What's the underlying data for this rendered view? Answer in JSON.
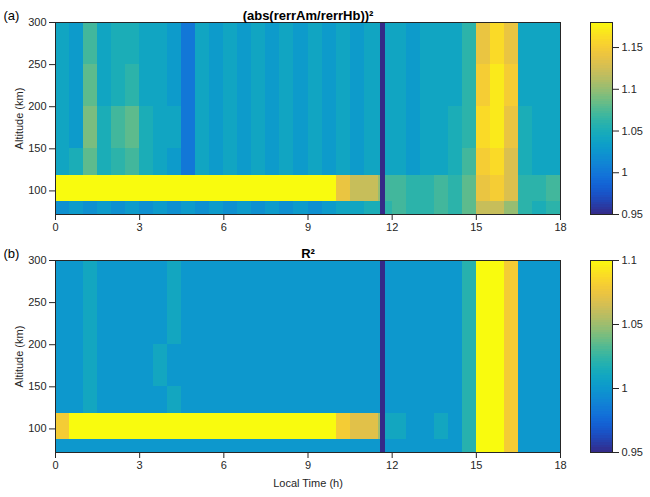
{
  "chart_data": [
    {
      "type": "heatmap",
      "label": "(a)",
      "title": "(abs(rerrAm/rerrHb))²",
      "y_label": "Altitude (km)",
      "xlim": [
        0,
        18
      ],
      "xticks": [
        0,
        3,
        6,
        9,
        12,
        15,
        18
      ],
      "ylim": [
        72,
        300
      ],
      "yticks": [
        100,
        150,
        200,
        250,
        300
      ],
      "x_edges": [
        0,
        0.5,
        1,
        1.5,
        2,
        2.5,
        3,
        3.5,
        4,
        4.5,
        5,
        5.5,
        6,
        6.5,
        7,
        7.5,
        8,
        8.5,
        9,
        9.5,
        10,
        10.5,
        11,
        11.5,
        11.6,
        11.75,
        12,
        12.5,
        13,
        13.5,
        14,
        14.5,
        15,
        15.5,
        16,
        16.5,
        17,
        17.5,
        18
      ],
      "y_edges": [
        72,
        88,
        118,
        150,
        200,
        250,
        300
      ],
      "cells": [
        [
          1.02,
          1.03,
          1.02,
          1.03,
          1.02,
          1.03,
          1.02,
          1.03,
          1.02,
          1.03,
          1.02,
          1.03,
          1.02,
          1.03,
          1.02,
          1.03,
          1.02,
          1.03,
          1.02,
          1.03,
          1.04,
          1.04,
          1.05,
          1.05,
          0.95,
          1.06,
          1.07,
          1.06,
          1.06,
          1.07,
          1.06,
          1.08,
          1.12,
          1.12,
          1.1,
          1.06,
          1.05,
          1.06
        ],
        [
          1.18,
          1.18,
          1.18,
          1.18,
          1.18,
          1.18,
          1.18,
          1.18,
          1.18,
          1.18,
          1.18,
          1.18,
          1.18,
          1.18,
          1.18,
          1.18,
          1.18,
          1.18,
          1.18,
          1.18,
          1.14,
          1.12,
          1.12,
          1.1,
          0.95,
          1.07,
          1.07,
          1.06,
          1.06,
          1.07,
          1.06,
          1.08,
          1.14,
          1.15,
          1.13,
          1.06,
          1.06,
          1.07
        ],
        [
          1.04,
          1.05,
          1.08,
          1.05,
          1.06,
          1.07,
          1.05,
          1.04,
          1.03,
          1,
          1.04,
          1.03,
          1.04,
          1.03,
          1.04,
          1.03,
          1.04,
          1.03,
          1.04,
          1.03,
          1.04,
          1.03,
          1.04,
          1.04,
          0.95,
          1.04,
          1.04,
          1.03,
          1.04,
          1.04,
          1.05,
          1.07,
          1.15,
          1.16,
          1.13,
          1.05,
          1.04,
          1.04
        ],
        [
          1.04,
          1.03,
          1.09,
          1.05,
          1.07,
          1.08,
          1.05,
          1.04,
          1.04,
          1,
          1.04,
          1.03,
          1.04,
          1.03,
          1.04,
          1.03,
          1.04,
          1.03,
          1.04,
          1.03,
          1.04,
          1.03,
          1.04,
          1.04,
          0.95,
          1.04,
          1.04,
          1.03,
          1.04,
          1.04,
          1.05,
          1.06,
          1.16,
          1.17,
          1.14,
          1.05,
          1.04,
          1.04
        ],
        [
          1.04,
          1.03,
          1.08,
          1.04,
          1.05,
          1.06,
          1.04,
          1.04,
          1.03,
          1,
          1.04,
          1.03,
          1.04,
          1.03,
          1.04,
          1.03,
          1.04,
          1.03,
          1.04,
          1.03,
          1.04,
          1.03,
          1.04,
          1.04,
          0.95,
          1.04,
          1.04,
          1.03,
          1.04,
          1.04,
          1.04,
          1.06,
          1.15,
          1.17,
          1.15,
          1.04,
          1.04,
          1.04
        ],
        [
          1.04,
          1.03,
          1.07,
          1.04,
          1.05,
          1.05,
          1.04,
          1.04,
          1.03,
          1,
          1.04,
          1.03,
          1.04,
          1.03,
          1.04,
          1.03,
          1.04,
          1.03,
          1.04,
          1.03,
          1.04,
          1.03,
          1.04,
          1.04,
          0.95,
          1.04,
          1.04,
          1.03,
          1.04,
          1.04,
          1.04,
          1.06,
          1.14,
          1.16,
          1.14,
          1.04,
          1.04,
          1.04
        ]
      ],
      "colorbar": {
        "range": [
          0.95,
          1.18
        ],
        "ticks": [
          0.95,
          1,
          1.05,
          1.1,
          1.15
        ]
      }
    },
    {
      "type": "heatmap",
      "label": "(b)",
      "title": "R²",
      "x_label": "Local Time (h)",
      "y_label": "Altitude (km)",
      "xlim": [
        0,
        18
      ],
      "xticks": [
        0,
        3,
        6,
        9,
        12,
        15,
        18
      ],
      "ylim": [
        72,
        300
      ],
      "yticks": [
        100,
        150,
        200,
        250,
        300
      ],
      "x_edges": [
        0,
        0.5,
        1,
        1.5,
        2,
        2.5,
        3,
        3.5,
        4,
        4.5,
        5,
        5.5,
        6,
        6.5,
        7,
        7.5,
        8,
        8.5,
        9,
        9.5,
        10,
        10.5,
        11,
        11.5,
        11.6,
        11.75,
        12,
        12.5,
        13,
        13.5,
        14,
        14.5,
        15,
        15.5,
        16,
        16.5,
        17,
        17.5,
        18
      ],
      "y_edges": [
        72,
        88,
        118,
        150,
        200,
        250,
        300
      ],
      "cells": [
        [
          1,
          1,
          1,
          1,
          1,
          1,
          1,
          1,
          1,
          1,
          1,
          1,
          1,
          1,
          1,
          1,
          1,
          1,
          1,
          1,
          1,
          1,
          1,
          1,
          0.95,
          1,
          1,
          1,
          1,
          1,
          1,
          1.02,
          1.1,
          1.1,
          1.08,
          1,
          1,
          1
        ],
        [
          1.08,
          1.1,
          1.1,
          1.1,
          1.1,
          1.1,
          1.1,
          1.1,
          1.1,
          1.1,
          1.1,
          1.1,
          1.1,
          1.1,
          1.1,
          1.1,
          1.1,
          1.1,
          1.1,
          1.1,
          1.08,
          1.07,
          1.07,
          1.05,
          0.95,
          1.01,
          1.01,
          1,
          1,
          1.01,
          1,
          1.02,
          1.1,
          1.1,
          1.08,
          1,
          1,
          1
        ],
        [
          1,
          1,
          1.01,
          1,
          1,
          1,
          1,
          1,
          1.01,
          1,
          1,
          1,
          1,
          1,
          1,
          1,
          1,
          1,
          1,
          1,
          1,
          1,
          1,
          1,
          0.95,
          1,
          1,
          1,
          1,
          1,
          1,
          1.02,
          1.1,
          1.1,
          1.08,
          1,
          1,
          1
        ],
        [
          1,
          1,
          1.01,
          1,
          1,
          1,
          1,
          1.01,
          1,
          1,
          1,
          1,
          1,
          1,
          1,
          1,
          1,
          1,
          1,
          1,
          1,
          1,
          1,
          1,
          0.95,
          1,
          1,
          1,
          1,
          1,
          1,
          1.02,
          1.1,
          1.1,
          1.08,
          1,
          1,
          1
        ],
        [
          1,
          1,
          1.01,
          1,
          1,
          1,
          1,
          1,
          1.01,
          1,
          1,
          1,
          1,
          1,
          1,
          1,
          1,
          1,
          1,
          1,
          1,
          1,
          1,
          1,
          0.95,
          1,
          1,
          1,
          1,
          1,
          1,
          1.02,
          1.1,
          1.1,
          1.08,
          1,
          1,
          1
        ],
        [
          1,
          1,
          1.01,
          1,
          1,
          1,
          1,
          1,
          1.01,
          1,
          1,
          1,
          1,
          1,
          1,
          1,
          1,
          1,
          1,
          1,
          1,
          1,
          1,
          1,
          0.95,
          1,
          1,
          1,
          1,
          1,
          1,
          1.02,
          1.1,
          1.1,
          1.08,
          1,
          1,
          1
        ]
      ],
      "colorbar": {
        "range": [
          0.95,
          1.1
        ],
        "ticks": [
          0.95,
          1,
          1.05,
          1.1
        ]
      }
    }
  ]
}
